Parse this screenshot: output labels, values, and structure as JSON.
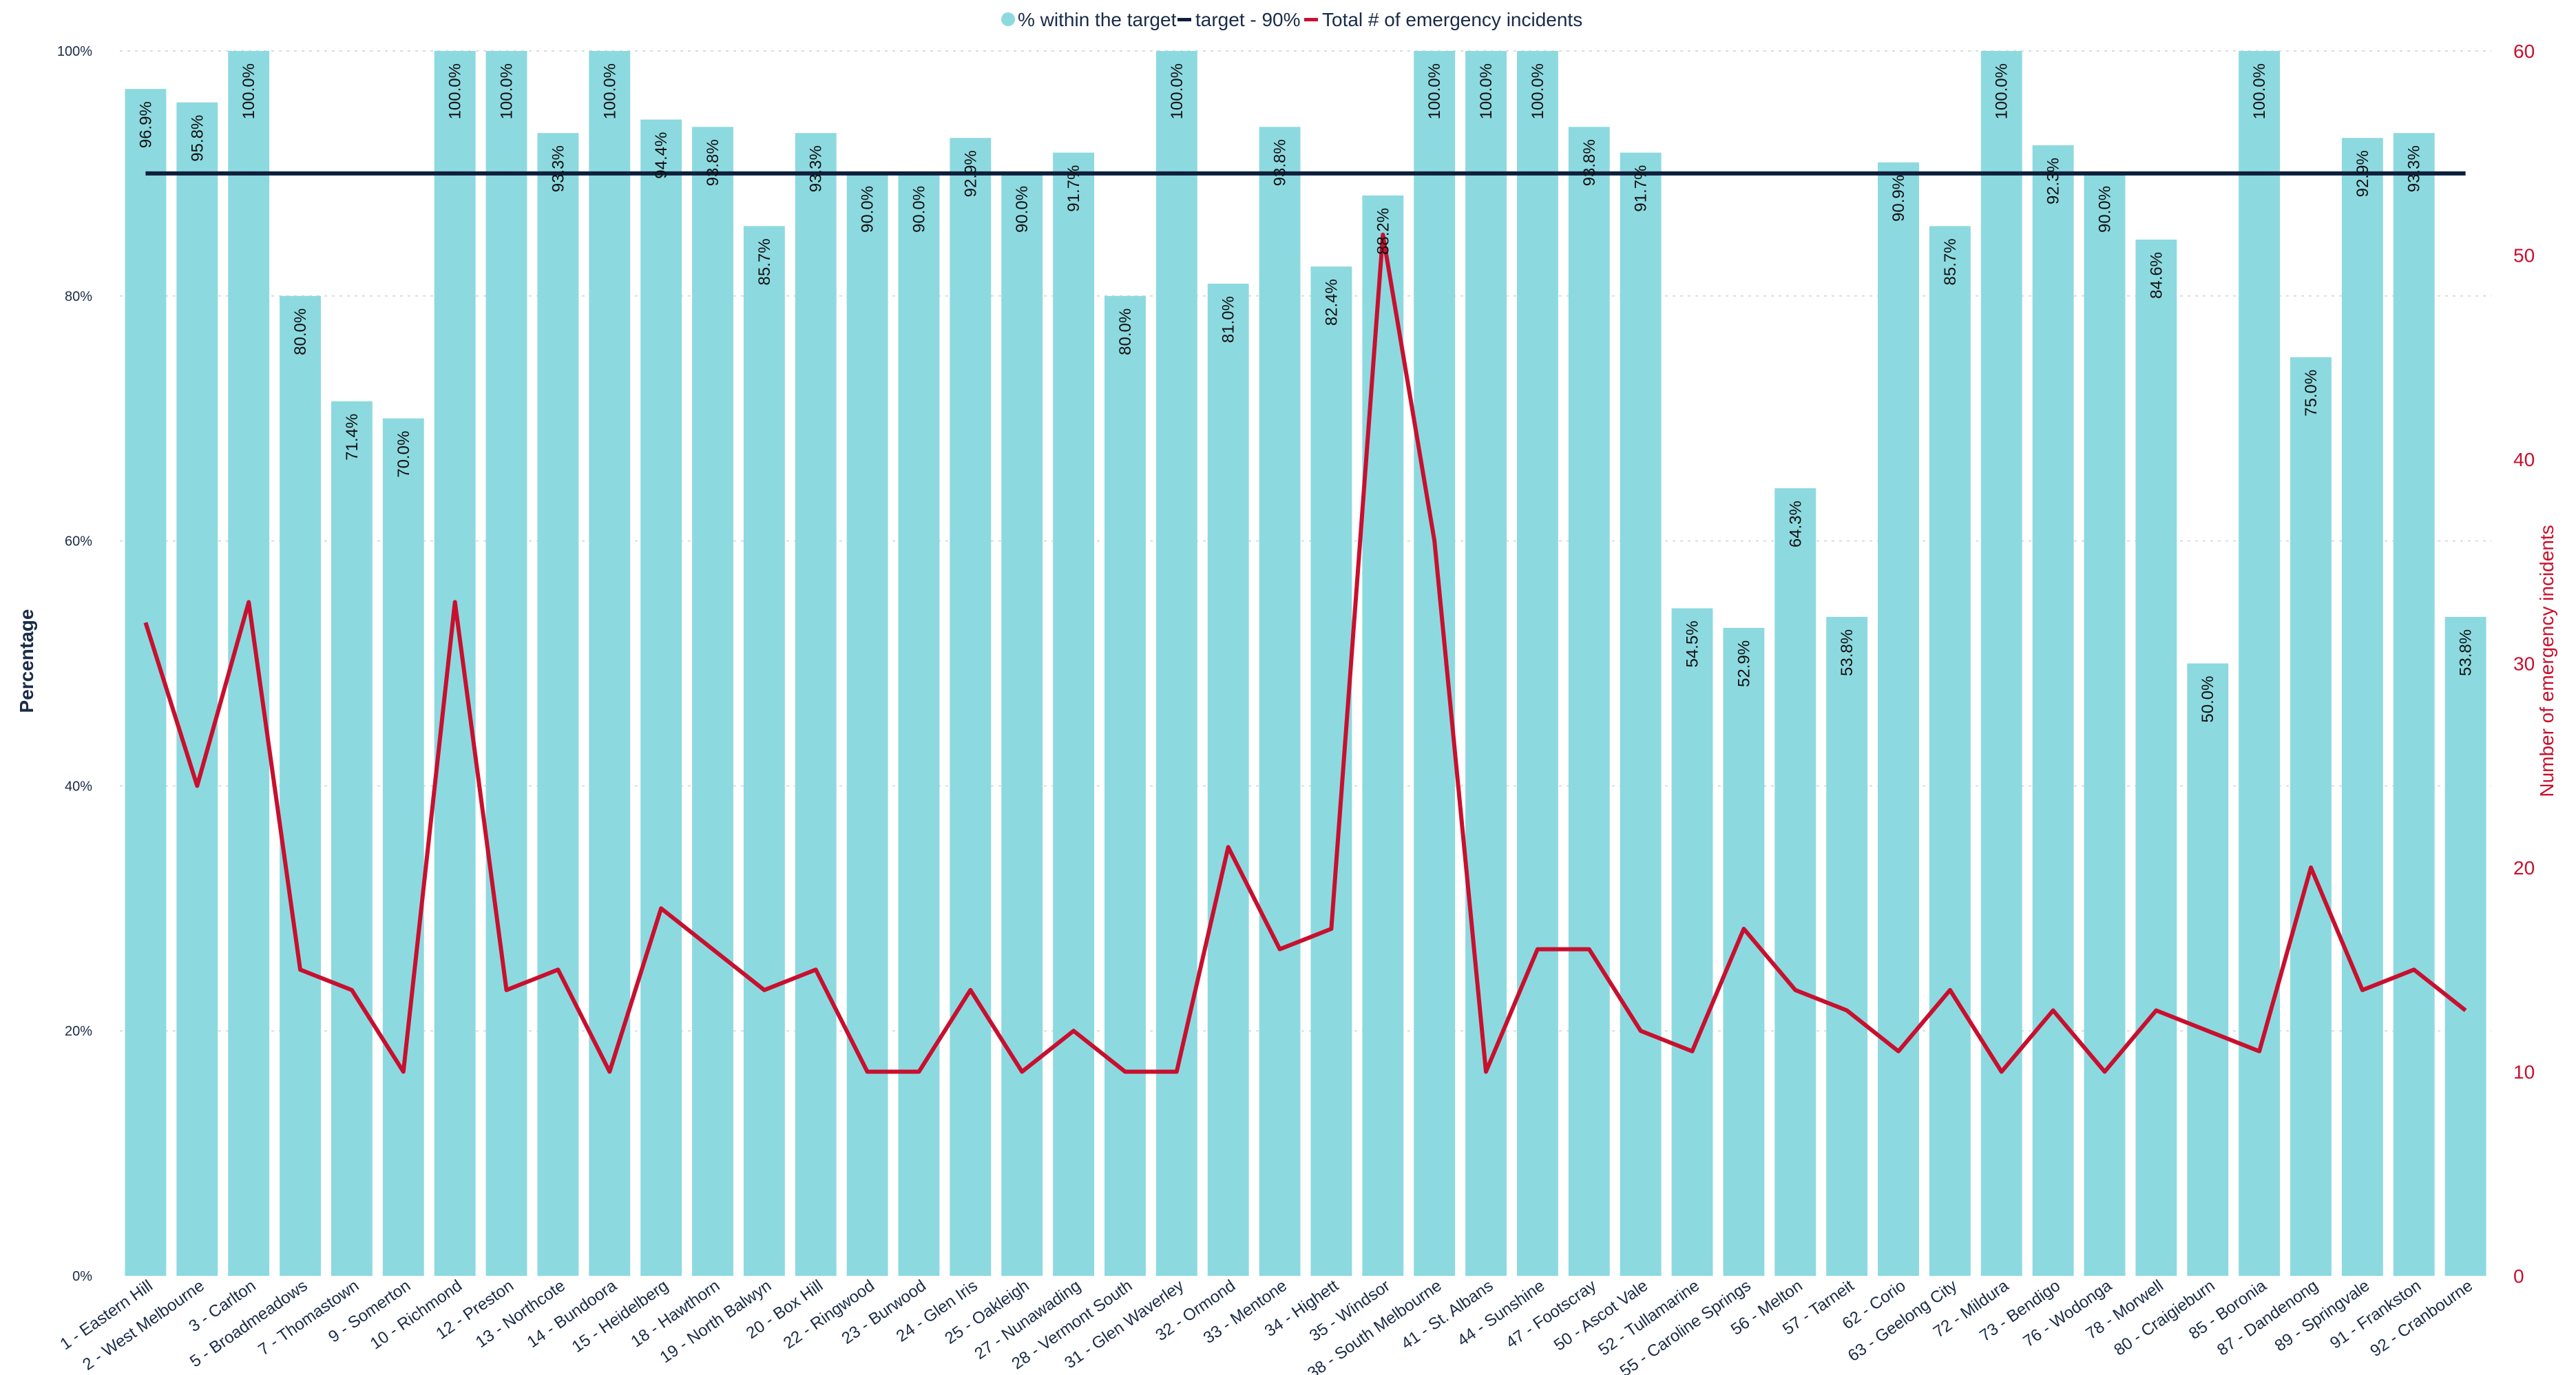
{
  "chart_data": {
    "type": "bar",
    "categories": [
      "1 - Eastern Hill",
      "2 - West Melbourne",
      "3 - Carlton",
      "5 - Broadmeadows",
      "7 - Thomastown",
      "9 - Somerton",
      "10 - Richmond",
      "12 - Preston",
      "13 - Northcote",
      "14 - Bundoora",
      "15 - Heidelberg",
      "18 - Hawthorn",
      "19 - North Balwyn",
      "20 - Box Hill",
      "22 - Ringwood",
      "23 - Burwood",
      "24 - Glen Iris",
      "25 - Oakleigh",
      "27 - Nunawading",
      "28 - Vermont South",
      "31 - Glen Waverley",
      "32 - Ormond",
      "33 - Mentone",
      "34 - Highett",
      "35 - Windsor",
      "38 - South Melbourne",
      "41 - St. Albans",
      "44 - Sunshine",
      "47 - Footscray",
      "50 - Ascot Vale",
      "52 - Tullamarine",
      "55 - Caroline Springs",
      "56 - Melton",
      "57 - Tarneit",
      "62 - Corio",
      "63 - Geelong City",
      "72 - Mildura",
      "73 - Bendigo",
      "76 - Wodonga",
      "78 - Morwell",
      "80 - Craigieburn",
      "85 - Boronia",
      "87 - Dandenong",
      "89 - Springvale",
      "91 - Frankston",
      "92 - Cranbourne"
    ],
    "series": [
      {
        "name": "% within the target",
        "type": "bar",
        "axis": "left",
        "color": "#8dd9e0",
        "values": [
          96.9,
          95.8,
          100.0,
          80.0,
          71.4,
          70.0,
          100.0,
          100.0,
          93.3,
          100.0,
          94.4,
          93.8,
          85.7,
          93.3,
          90.0,
          90.0,
          92.9,
          90.0,
          91.7,
          80.0,
          100.0,
          81.0,
          93.8,
          82.4,
          88.2,
          100.0,
          100.0,
          100.0,
          93.8,
          91.7,
          54.5,
          52.9,
          64.3,
          53.8,
          90.9,
          85.7,
          100.0,
          92.3,
          90.0,
          84.6,
          50.0,
          100.0,
          75.0,
          92.9,
          93.3,
          53.8
        ],
        "labels": [
          "96.9%",
          "95.8%",
          "100.0%",
          "80.0%",
          "71.4%",
          "70.0%",
          "100.0%",
          "100.0%",
          "93.3%",
          "100.0%",
          "94.4%",
          "93.8%",
          "85.7%",
          "93.3%",
          "90.0%",
          "90.0%",
          "92.9%",
          "90.0%",
          "91.7%",
          "80.0%",
          "100.0%",
          "81.0%",
          "93.8%",
          "82.4%",
          "88.2%",
          "100.0%",
          "100.0%",
          "100.0%",
          "93.8%",
          "91.7%",
          "54.5%",
          "52.9%",
          "64.3%",
          "53.8%",
          "90.9%",
          "85.7%",
          "100.0%",
          "92.3%",
          "90.0%",
          "84.6%",
          "50.0%",
          "100.0%",
          "75.0%",
          "92.9%",
          "93.3%",
          "53.8%"
        ]
      },
      {
        "name": "target - 90%",
        "type": "line",
        "axis": "left",
        "color": "#0d1f3c",
        "value": 90
      },
      {
        "name": "Total # of emergency incidents",
        "type": "line",
        "axis": "right",
        "color": "#c8102e",
        "values": [
          32,
          24,
          33,
          15,
          14,
          10,
          33,
          14,
          15,
          10,
          18,
          16,
          14,
          15,
          10,
          10,
          14,
          10,
          12,
          10,
          10,
          21,
          16,
          17,
          51,
          36,
          10,
          16,
          16,
          12,
          11,
          17,
          14,
          13,
          11,
          14,
          10,
          13,
          10,
          13,
          12,
          11,
          20,
          14,
          15,
          13
        ]
      }
    ],
    "ylabel": "Percentage",
    "ylim": [
      0,
      100
    ],
    "yticks": [
      "0%",
      "20%",
      "40%",
      "60%",
      "80%",
      "100%"
    ],
    "ylabel_right": "Number of emergency incidents",
    "ylim_right": [
      0,
      60
    ],
    "yticks_right": [
      "0",
      "10",
      "20",
      "30",
      "40",
      "50",
      "60"
    ],
    "legend_position": "top-center",
    "grid": "horizontal dotted"
  }
}
